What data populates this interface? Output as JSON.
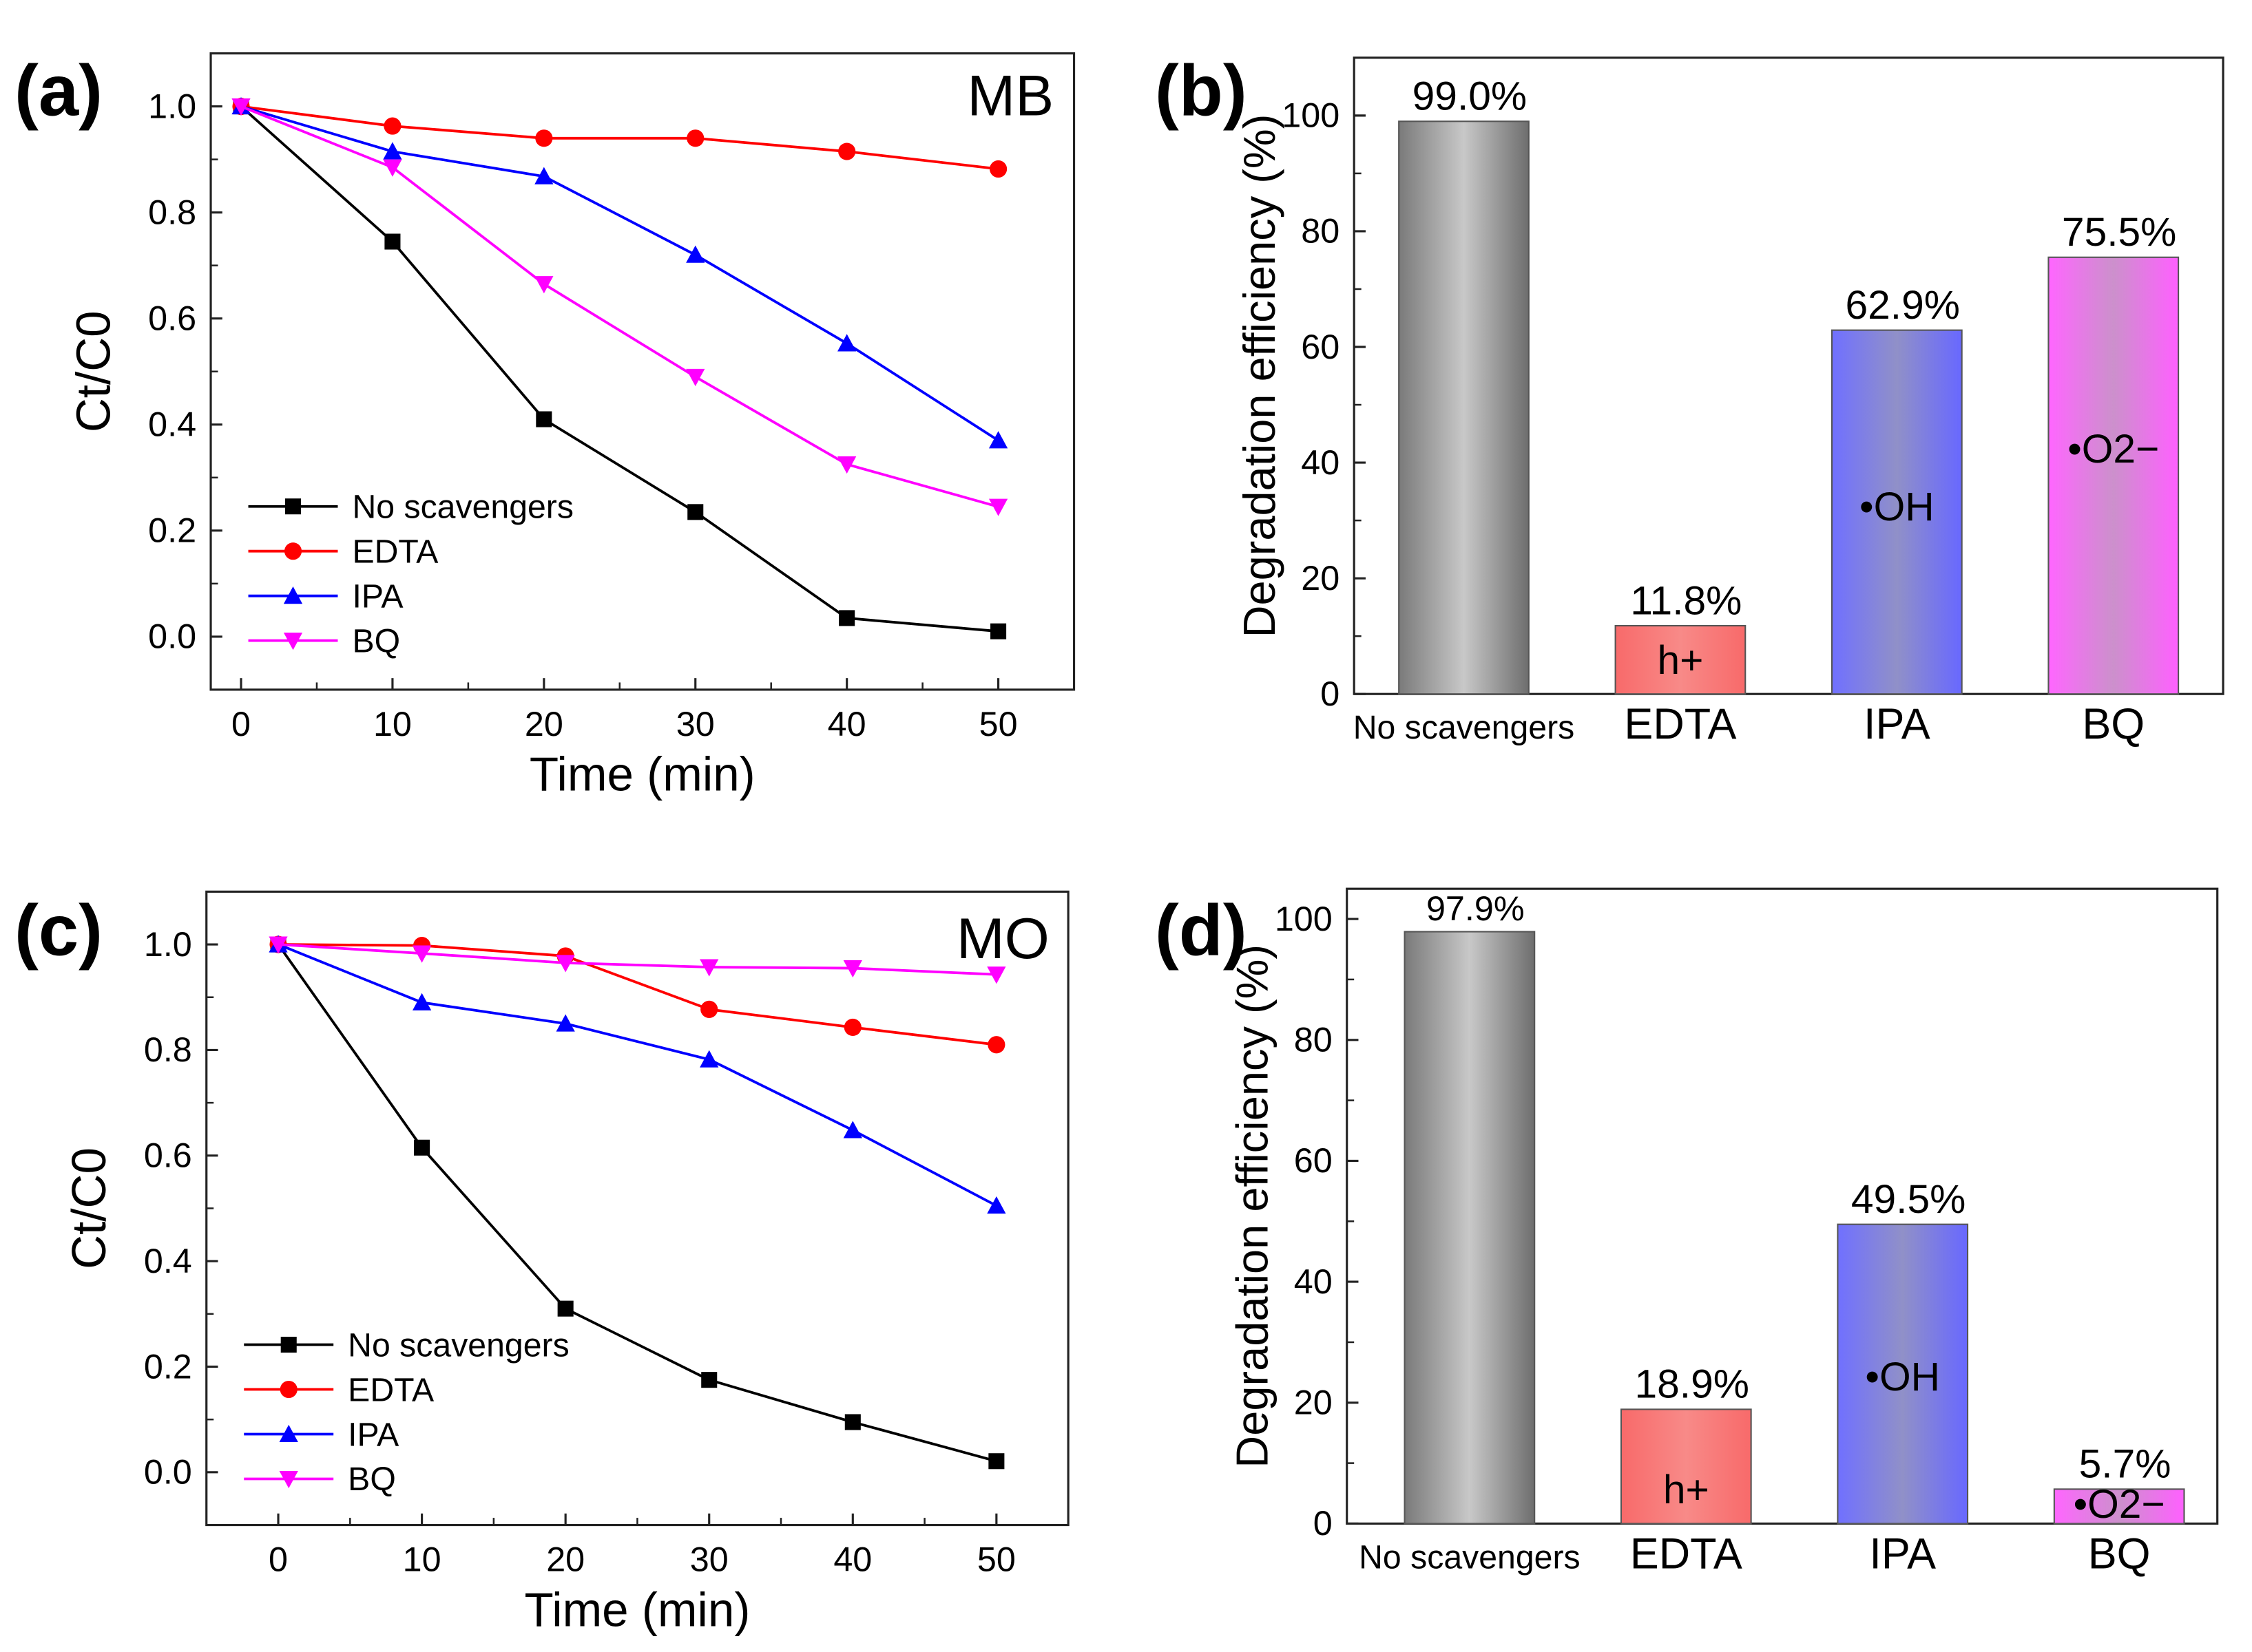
{
  "chart_data": [
    {
      "panel": "(a)",
      "type": "line",
      "annotation": "MB",
      "xlabel": "Time (min)",
      "ylabel": "Ct/C0",
      "xlim": [
        -2,
        55
      ],
      "ylim": [
        -0.1,
        1.1
      ],
      "xticks": [
        0,
        10,
        20,
        30,
        40,
        50
      ],
      "yticks": [
        "0.0",
        "0.2",
        "0.4",
        "0.6",
        "0.8",
        "1.0"
      ],
      "legend_position": "bottom-left",
      "x": [
        0,
        10,
        20,
        30,
        40,
        50
      ],
      "series": [
        {
          "name": "No scavengers",
          "color": "#000000",
          "marker": "square",
          "values": [
            1.0,
            0.745,
            0.41,
            0.235,
            0.035,
            0.01
          ]
        },
        {
          "name": "EDTA",
          "color": "#ff0000",
          "marker": "circle",
          "values": [
            1.0,
            0.963,
            0.94,
            0.94,
            0.915,
            0.882
          ]
        },
        {
          "name": "IPA",
          "color": "#0000ff",
          "marker": "triangle-up",
          "values": [
            1.0,
            0.915,
            0.868,
            0.72,
            0.553,
            0.37
          ]
        },
        {
          "name": "BQ",
          "color": "#ff00ff",
          "marker": "triangle-down",
          "values": [
            1.0,
            0.885,
            0.665,
            0.49,
            0.325,
            0.245
          ]
        }
      ]
    },
    {
      "panel": "(b)",
      "type": "bar",
      "ylabel": "Degradation efficiency (%)",
      "ylim": [
        0,
        110
      ],
      "yticks": [
        "0",
        "20",
        "40",
        "60",
        "80",
        "100"
      ],
      "categories": [
        "No scavengers",
        "EDTA",
        "IPA",
        "BQ"
      ],
      "values": [
        99.0,
        11.8,
        62.9,
        75.5
      ],
      "value_labels": [
        "99.0%",
        "11.8%",
        "62.9%",
        "75.5%"
      ],
      "bar_annotations": [
        "",
        "h+",
        "•OH",
        "•O2−"
      ]
    },
    {
      "panel": "(c)",
      "type": "line",
      "annotation": "MO",
      "xlabel": "Time (min)",
      "ylabel": "Ct/C0",
      "xlim": [
        -5,
        55
      ],
      "ylim": [
        -0.1,
        1.1
      ],
      "xticks": [
        0,
        10,
        20,
        30,
        40,
        50
      ],
      "yticks": [
        "0.0",
        "0.2",
        "0.4",
        "0.6",
        "0.8",
        "1.0"
      ],
      "legend_position": "bottom-left",
      "x": [
        0,
        10,
        20,
        30,
        40,
        50
      ],
      "series": [
        {
          "name": "No scavengers",
          "color": "#000000",
          "marker": "square",
          "values": [
            1.0,
            0.615,
            0.31,
            0.175,
            0.095,
            0.021
          ]
        },
        {
          "name": "EDTA",
          "color": "#ff0000",
          "marker": "circle",
          "values": [
            1.0,
            0.998,
            0.978,
            0.877,
            0.843,
            0.81
          ]
        },
        {
          "name": "IPA",
          "color": "#0000ff",
          "marker": "triangle-up",
          "values": [
            1.0,
            0.89,
            0.85,
            0.782,
            0.648,
            0.505
          ]
        },
        {
          "name": "BQ",
          "color": "#ff00ff",
          "marker": "triangle-down",
          "values": [
            1.0,
            0.983,
            0.965,
            0.957,
            0.955,
            0.943
          ]
        }
      ]
    },
    {
      "panel": "(d)",
      "type": "bar",
      "ylabel": "Degradation efficiency (%)",
      "ylim": [
        0,
        105
      ],
      "yticks": [
        "0",
        "20",
        "40",
        "60",
        "80",
        "100"
      ],
      "categories": [
        "No scavengers",
        "EDTA",
        "IPA",
        "BQ"
      ],
      "values": [
        97.9,
        18.9,
        49.5,
        5.7
      ],
      "value_labels": [
        "97.9%",
        "18.9%",
        "49.5%",
        "5.7%"
      ],
      "bar_annotations": [
        "",
        "h+",
        "•OH",
        "•O2−"
      ]
    }
  ]
}
